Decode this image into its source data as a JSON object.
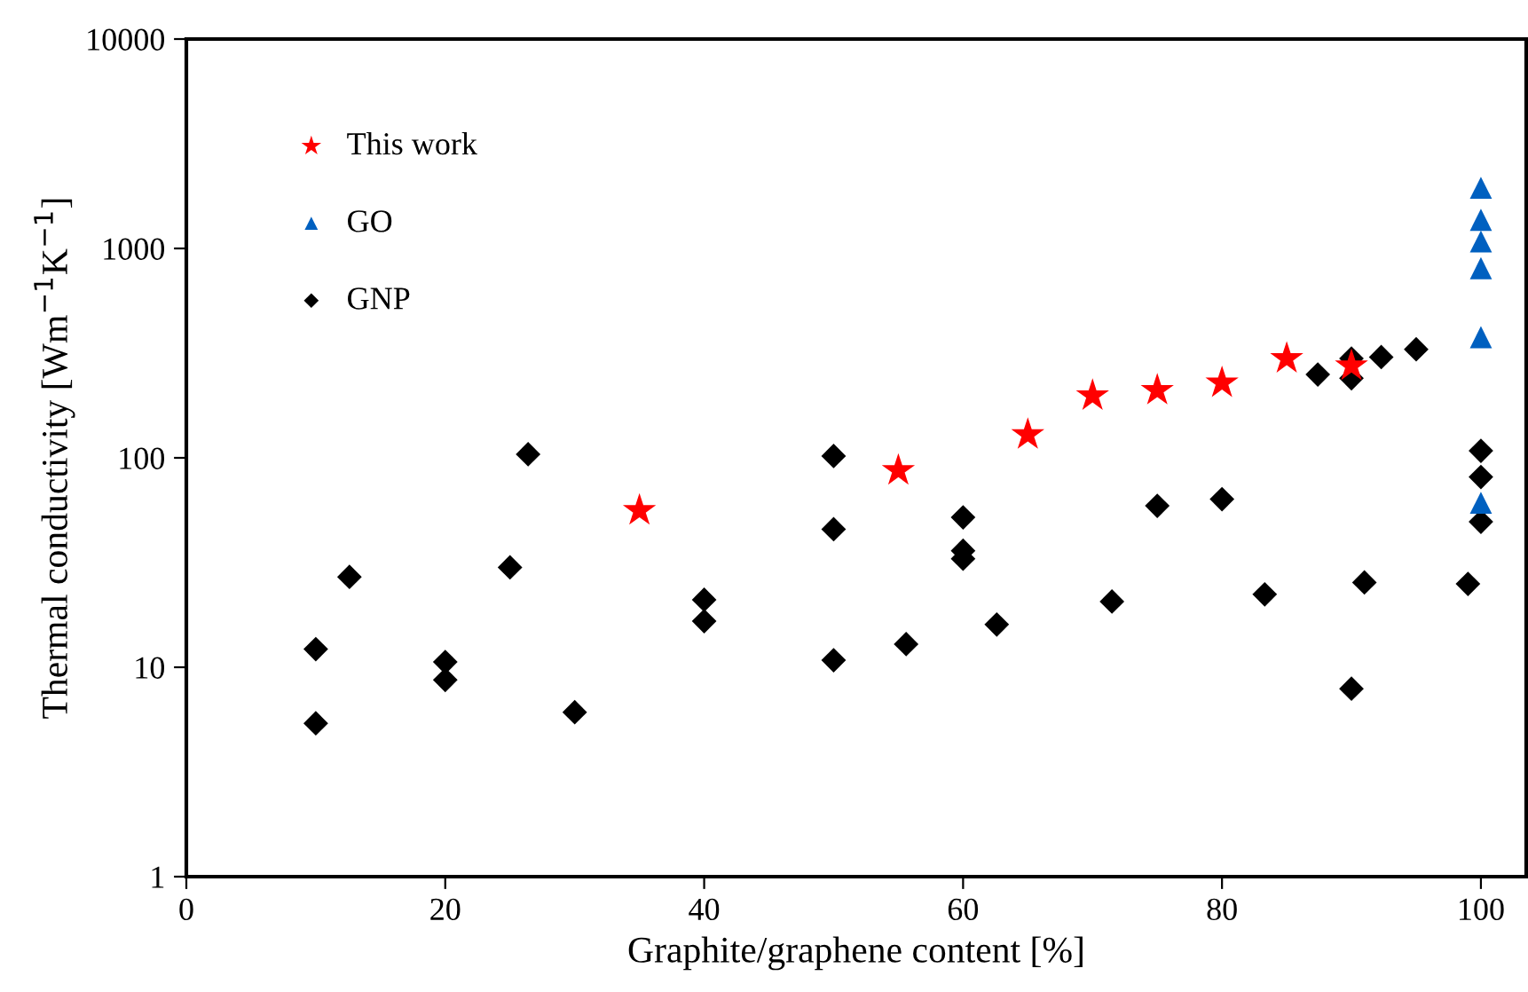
{
  "chart_data": {
    "type": "scatter",
    "xlabel": "Graphite/graphene content [%]",
    "ylabel": "Thermal conductivity [Wm$^{−1}$K$^{−1}$]",
    "log": "y",
    "xlim": [
      0,
      103.5
    ],
    "ylim": [
      1,
      10000
    ],
    "xticks": [
      0,
      20,
      40,
      60,
      80,
      100
    ],
    "yticks": [
      1,
      10,
      100,
      1000,
      10000
    ],
    "grid": false,
    "legend": "top left",
    "series": [
      {
        "name": "This work",
        "color": "#ff0000",
        "marker": "star",
        "x": [
          35,
          55,
          65,
          70,
          75,
          80,
          85,
          90
        ],
        "values": [
          56,
          87,
          129,
          198,
          210,
          228,
          298,
          275
        ]
      },
      {
        "name": "GO",
        "color": "#0060c0",
        "marker": "triangle",
        "x": [
          100,
          100,
          100,
          100,
          100,
          100
        ],
        "values": [
          1950,
          1370,
          1080,
          805,
          377,
          61
        ]
      },
      {
        "name": "GNP",
        "color": "#000000",
        "marker": "diamond",
        "x": [
          10,
          10,
          12.6,
          20,
          20,
          25,
          26.4,
          30,
          40,
          40,
          50,
          50,
          50,
          60,
          60,
          60,
          55.6,
          62.6,
          71.5,
          75,
          80,
          83.3,
          87.4,
          90,
          90,
          92.3,
          95,
          90,
          91,
          99,
          100,
          100,
          100
        ],
        "values": [
          12.2,
          5.4,
          27,
          10.6,
          8.7,
          30,
          104,
          6.1,
          21,
          16.6,
          102,
          45.6,
          10.8,
          52,
          36,
          33,
          12.9,
          16,
          20.6,
          59,
          63.5,
          22.3,
          250,
          298,
          240,
          303,
          330,
          7.9,
          25.4,
          25,
          108,
          81,
          49.5
        ]
      }
    ]
  }
}
